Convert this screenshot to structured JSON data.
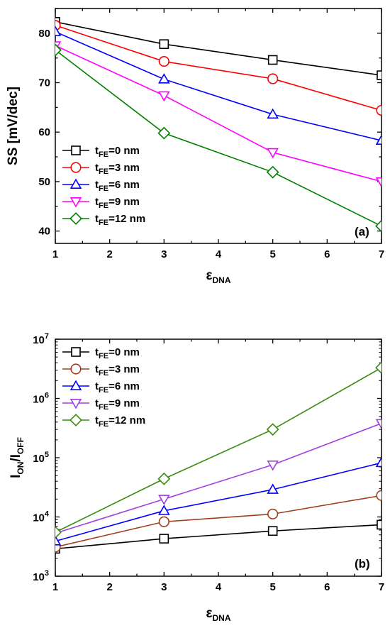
{
  "chart_data": [
    {
      "type": "line",
      "panel_label": "(a)",
      "y_scale": "linear",
      "xlabel": {
        "base": "ε",
        "sub": "DNA"
      },
      "ylabel": "SS [mV/dec]",
      "xlim": [
        1,
        7
      ],
      "ylim": [
        37.5,
        85
      ],
      "x_ticks": [
        1,
        2,
        3,
        4,
        5,
        6,
        7
      ],
      "y_ticks": [
        40,
        50,
        60,
        70,
        80
      ],
      "x": [
        1,
        3,
        5,
        7
      ],
      "legend_position": "bottom-left",
      "series": [
        {
          "legend": {
            "base": "t",
            "sub": "FE",
            "rest": "=0 nm"
          },
          "marker": "square",
          "color": "#000000",
          "values": [
            82.3,
            77.8,
            74.6,
            71.5
          ]
        },
        {
          "legend": {
            "base": "t",
            "sub": "FE",
            "rest": "=3 nm"
          },
          "marker": "circle",
          "color": "#ff0000",
          "values": [
            81.6,
            74.3,
            70.8,
            64.4
          ]
        },
        {
          "legend": {
            "base": "t",
            "sub": "FE",
            "rest": "=6 nm"
          },
          "marker": "triangle-up",
          "color": "#0000ff",
          "values": [
            80.3,
            70.7,
            63.6,
            58.3
          ]
        },
        {
          "legend": {
            "base": "t",
            "sub": "FE",
            "rest": "=9 nm"
          },
          "marker": "triangle-down",
          "color": "#ff00ff",
          "values": [
            77.5,
            67.4,
            55.9,
            50.0
          ]
        },
        {
          "legend": {
            "base": "t",
            "sub": "FE",
            "rest": "=12 nm"
          },
          "marker": "diamond",
          "color": "#008000",
          "values": [
            76.6,
            59.8,
            51.9,
            41.0
          ]
        }
      ]
    },
    {
      "type": "line",
      "panel_label": "(b)",
      "y_scale": "log",
      "xlabel": {
        "base": "ε",
        "sub": "DNA"
      },
      "ylabel": {
        "base1": "I",
        "sub1": "ON",
        "mid": "/I",
        "sub2": "OFF"
      },
      "xlim": [
        1,
        7
      ],
      "ylim": [
        1000,
        10000000
      ],
      "x_ticks": [
        1,
        2,
        3,
        4,
        5,
        6,
        7
      ],
      "y_ticks": [
        {
          "value": 1000,
          "base": "10",
          "exp": "3"
        },
        {
          "value": 10000,
          "base": "10",
          "exp": "4"
        },
        {
          "value": 100000,
          "base": "10",
          "exp": "5"
        },
        {
          "value": 1000000,
          "base": "10",
          "exp": "6"
        },
        {
          "value": 10000000,
          "base": "10",
          "exp": "7"
        }
      ],
      "x": [
        1,
        3,
        5,
        7
      ],
      "legend_position": "top-left",
      "series": [
        {
          "legend": {
            "base": "t",
            "sub": "FE",
            "rest": "=0 nm"
          },
          "marker": "square",
          "color": "#000000",
          "values": [
            2900,
            4300,
            5800,
            7400
          ]
        },
        {
          "legend": {
            "base": "t",
            "sub": "FE",
            "rest": "=3 nm"
          },
          "marker": "circle",
          "color": "#a0401e",
          "values": [
            3100,
            8300,
            11200,
            23000
          ]
        },
        {
          "legend": {
            "base": "t",
            "sub": "FE",
            "rest": "=6 nm"
          },
          "marker": "triangle-up",
          "color": "#0000ff",
          "values": [
            3900,
            12700,
            29000,
            82000
          ]
        },
        {
          "legend": {
            "base": "t",
            "sub": "FE",
            "rest": "=9 nm"
          },
          "marker": "triangle-down",
          "color": "#a040e0",
          "values": [
            5300,
            20000,
            76000,
            380000
          ]
        },
        {
          "legend": {
            "base": "t",
            "sub": "FE",
            "rest": "=12 nm"
          },
          "marker": "diamond",
          "color": "#3a8a10",
          "values": [
            5500,
            44000,
            300000,
            3300000
          ]
        }
      ]
    }
  ]
}
